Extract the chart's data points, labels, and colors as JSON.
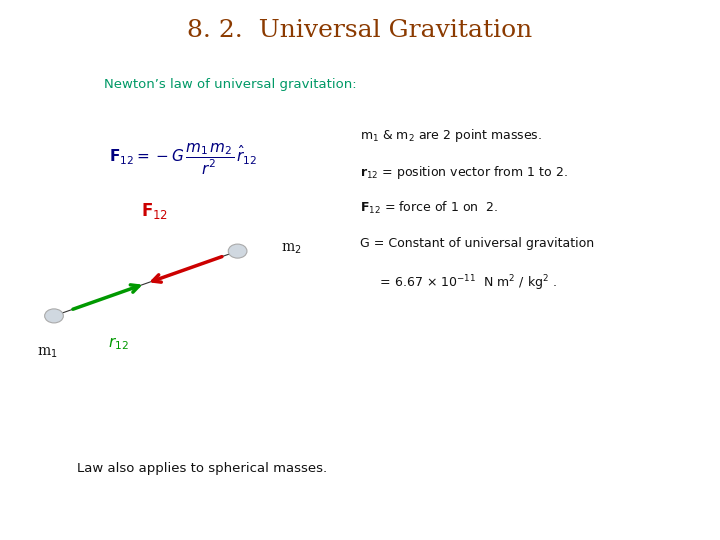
{
  "title": "8. 2.  Universal Gravitation",
  "title_color": "#8B3A00",
  "title_fontsize": 18,
  "bg_color": "#ffffff",
  "subtitle": "Newton’s law of universal gravitation:",
  "subtitle_color": "#009966",
  "subtitle_fontsize": 9.5,
  "bullet1": "m$_1$ & m$_2$ are 2 point masses.",
  "bullet2": "$\\mathbf{r}_{12}$ = position vector from 1 to 2.",
  "bullet3": "$\\mathbf{F}_{12}$ = force of 1 on  2.",
  "bullet4": "G = Constant of universal gravitation",
  "bullet5": "     = 6.67 × 10$^{-11}$  N m$^2$ / kg$^2$ .",
  "bottom_note": "Law also applies to spherical masses.",
  "m1x": 0.075,
  "m1y": 0.415,
  "m2x": 0.33,
  "m2y": 0.535,
  "arrow_green_color": "#009900",
  "arrow_red_color": "#cc0000",
  "F12_label_color": "#cc0000",
  "r12_label_color": "#009900",
  "bullet_color": "#111111",
  "bullet_fontsize": 9,
  "diagram_line_color": "#333333"
}
